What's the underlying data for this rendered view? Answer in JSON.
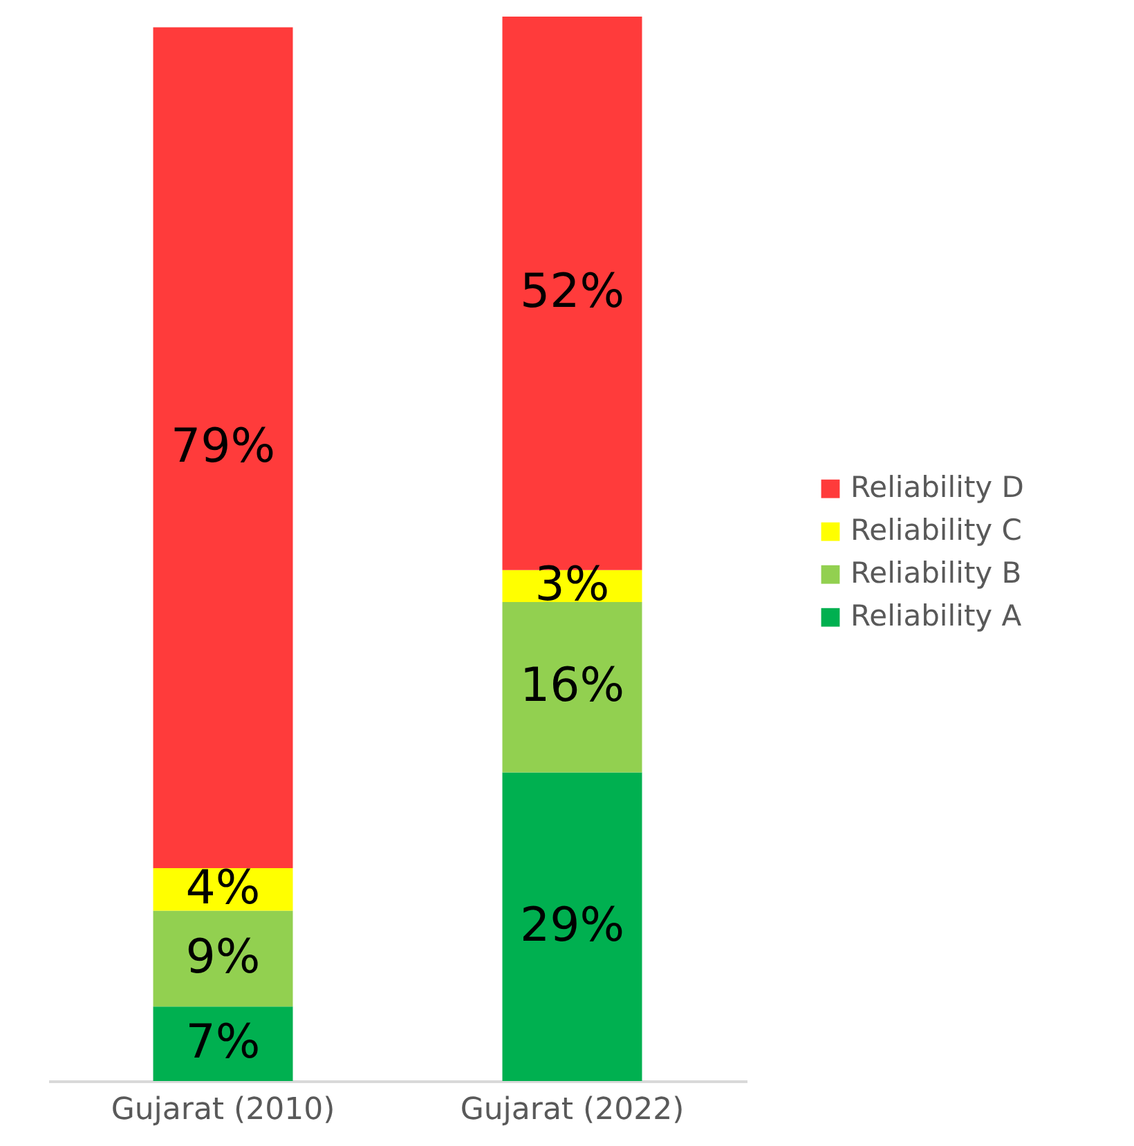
{
  "chart_data": {
    "type": "bar",
    "stacked": true,
    "categories": [
      "Gujarat (2010)",
      "Gujarat (2022)"
    ],
    "series": [
      {
        "name": "Reliability A",
        "color": "#00b050",
        "values": [
          7,
          29
        ],
        "value_labels": [
          "7%",
          "29%"
        ]
      },
      {
        "name": "Reliability B",
        "color": "#92d050",
        "values": [
          9,
          16
        ],
        "value_labels": [
          "9%",
          "16%"
        ]
      },
      {
        "name": "Reliability C",
        "color": "#ffff00",
        "values": [
          4,
          3
        ],
        "value_labels": [
          "4%",
          "3%"
        ]
      },
      {
        "name": "Reliability D",
        "color": "#ff3b3b",
        "values": [
          79,
          52
        ],
        "value_labels": [
          "79%",
          "52%"
        ]
      }
    ],
    "legend": "right"
  }
}
